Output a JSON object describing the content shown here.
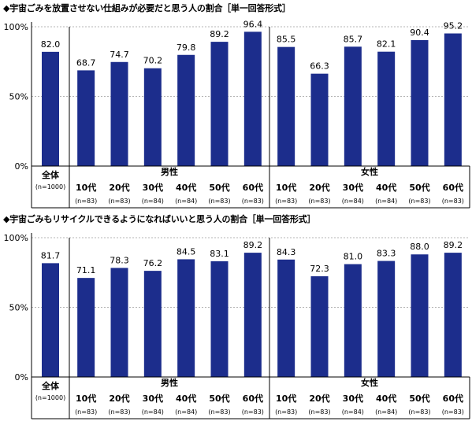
{
  "chart_data": [
    {
      "type": "bar",
      "title": "◆宇宙ごみを放置させない仕組みが必要だと思う人の割合［単一回答形式］",
      "ylim": [
        0,
        100
      ],
      "yticks": [
        "0%",
        "50%",
        "100%"
      ],
      "categories": [
        "全体",
        "10代",
        "20代",
        "30代",
        "40代",
        "50代",
        "60代",
        "10代",
        "20代",
        "30代",
        "40代",
        "50代",
        "60代"
      ],
      "n_labels": [
        "(n=1000)",
        "(n=83)",
        "(n=83)",
        "(n=84)",
        "(n=84)",
        "(n=83)",
        "(n=83)",
        "(n=83)",
        "(n=83)",
        "(n=84)",
        "(n=84)",
        "(n=83)",
        "(n=83)"
      ],
      "groups": [
        {
          "label": "男性",
          "start": 1,
          "end": 6
        },
        {
          "label": "女性",
          "start": 7,
          "end": 12
        }
      ],
      "values": [
        82.0,
        68.7,
        74.7,
        70.2,
        79.8,
        89.2,
        96.4,
        85.5,
        66.3,
        85.7,
        82.1,
        90.4,
        95.2
      ]
    },
    {
      "type": "bar",
      "title": "◆宇宙ごみもリサイクルできるようになればいいと思う人の割合［単一回答形式］",
      "ylim": [
        0,
        100
      ],
      "yticks": [
        "0%",
        "50%",
        "100%"
      ],
      "categories": [
        "全体",
        "10代",
        "20代",
        "30代",
        "40代",
        "50代",
        "60代",
        "10代",
        "20代",
        "30代",
        "40代",
        "50代",
        "60代"
      ],
      "n_labels": [
        "(n=1000)",
        "(n=83)",
        "(n=83)",
        "(n=84)",
        "(n=84)",
        "(n=83)",
        "(n=83)",
        "(n=83)",
        "(n=83)",
        "(n=84)",
        "(n=84)",
        "(n=83)",
        "(n=83)"
      ],
      "groups": [
        {
          "label": "男性",
          "start": 1,
          "end": 6
        },
        {
          "label": "女性",
          "start": 7,
          "end": 12
        }
      ],
      "values": [
        81.7,
        71.1,
        78.3,
        76.2,
        84.5,
        83.1,
        89.2,
        84.3,
        72.3,
        81.0,
        83.3,
        88.0,
        89.2
      ]
    }
  ],
  "colors": {
    "bar": "#1c2d8c",
    "grid": "#b4b4b4"
  }
}
